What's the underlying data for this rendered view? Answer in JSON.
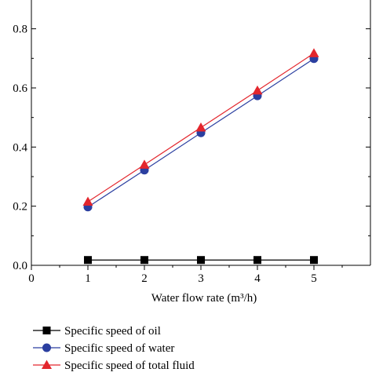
{
  "chart_data": {
    "type": "line",
    "xlabel": "Water flow rate (m³/h)",
    "ylabel": "",
    "xlim": [
      0,
      6
    ],
    "ylim": [
      0,
      0.9
    ],
    "x_ticks": [
      0,
      1,
      2,
      3,
      4,
      5
    ],
    "y_ticks": [
      0.0,
      0.2,
      0.4,
      0.6,
      0.8
    ],
    "x_tick_labels": [
      "0",
      "1",
      "2",
      "3",
      "4",
      "5"
    ],
    "y_tick_labels": [
      "0.0",
      "0.2",
      "0.4",
      "0.6",
      "0.8"
    ],
    "grid": false,
    "legend_position": "bottom-left-below-plot",
    "x": [
      1,
      2,
      3,
      4,
      5
    ],
    "series": [
      {
        "name": "Specific speed of oil",
        "values": [
          0.018,
          0.018,
          0.018,
          0.018,
          0.018
        ],
        "color": "#000000",
        "marker": "square"
      },
      {
        "name": "Specific speed of water",
        "values": [
          0.197,
          0.322,
          0.448,
          0.573,
          0.699
        ],
        "color": "#2b3fa0",
        "marker": "circle"
      },
      {
        "name": "Specific speed of total fluid",
        "values": [
          0.215,
          0.34,
          0.466,
          0.591,
          0.717
        ],
        "color": "#e3262d",
        "marker": "triangle"
      }
    ]
  }
}
